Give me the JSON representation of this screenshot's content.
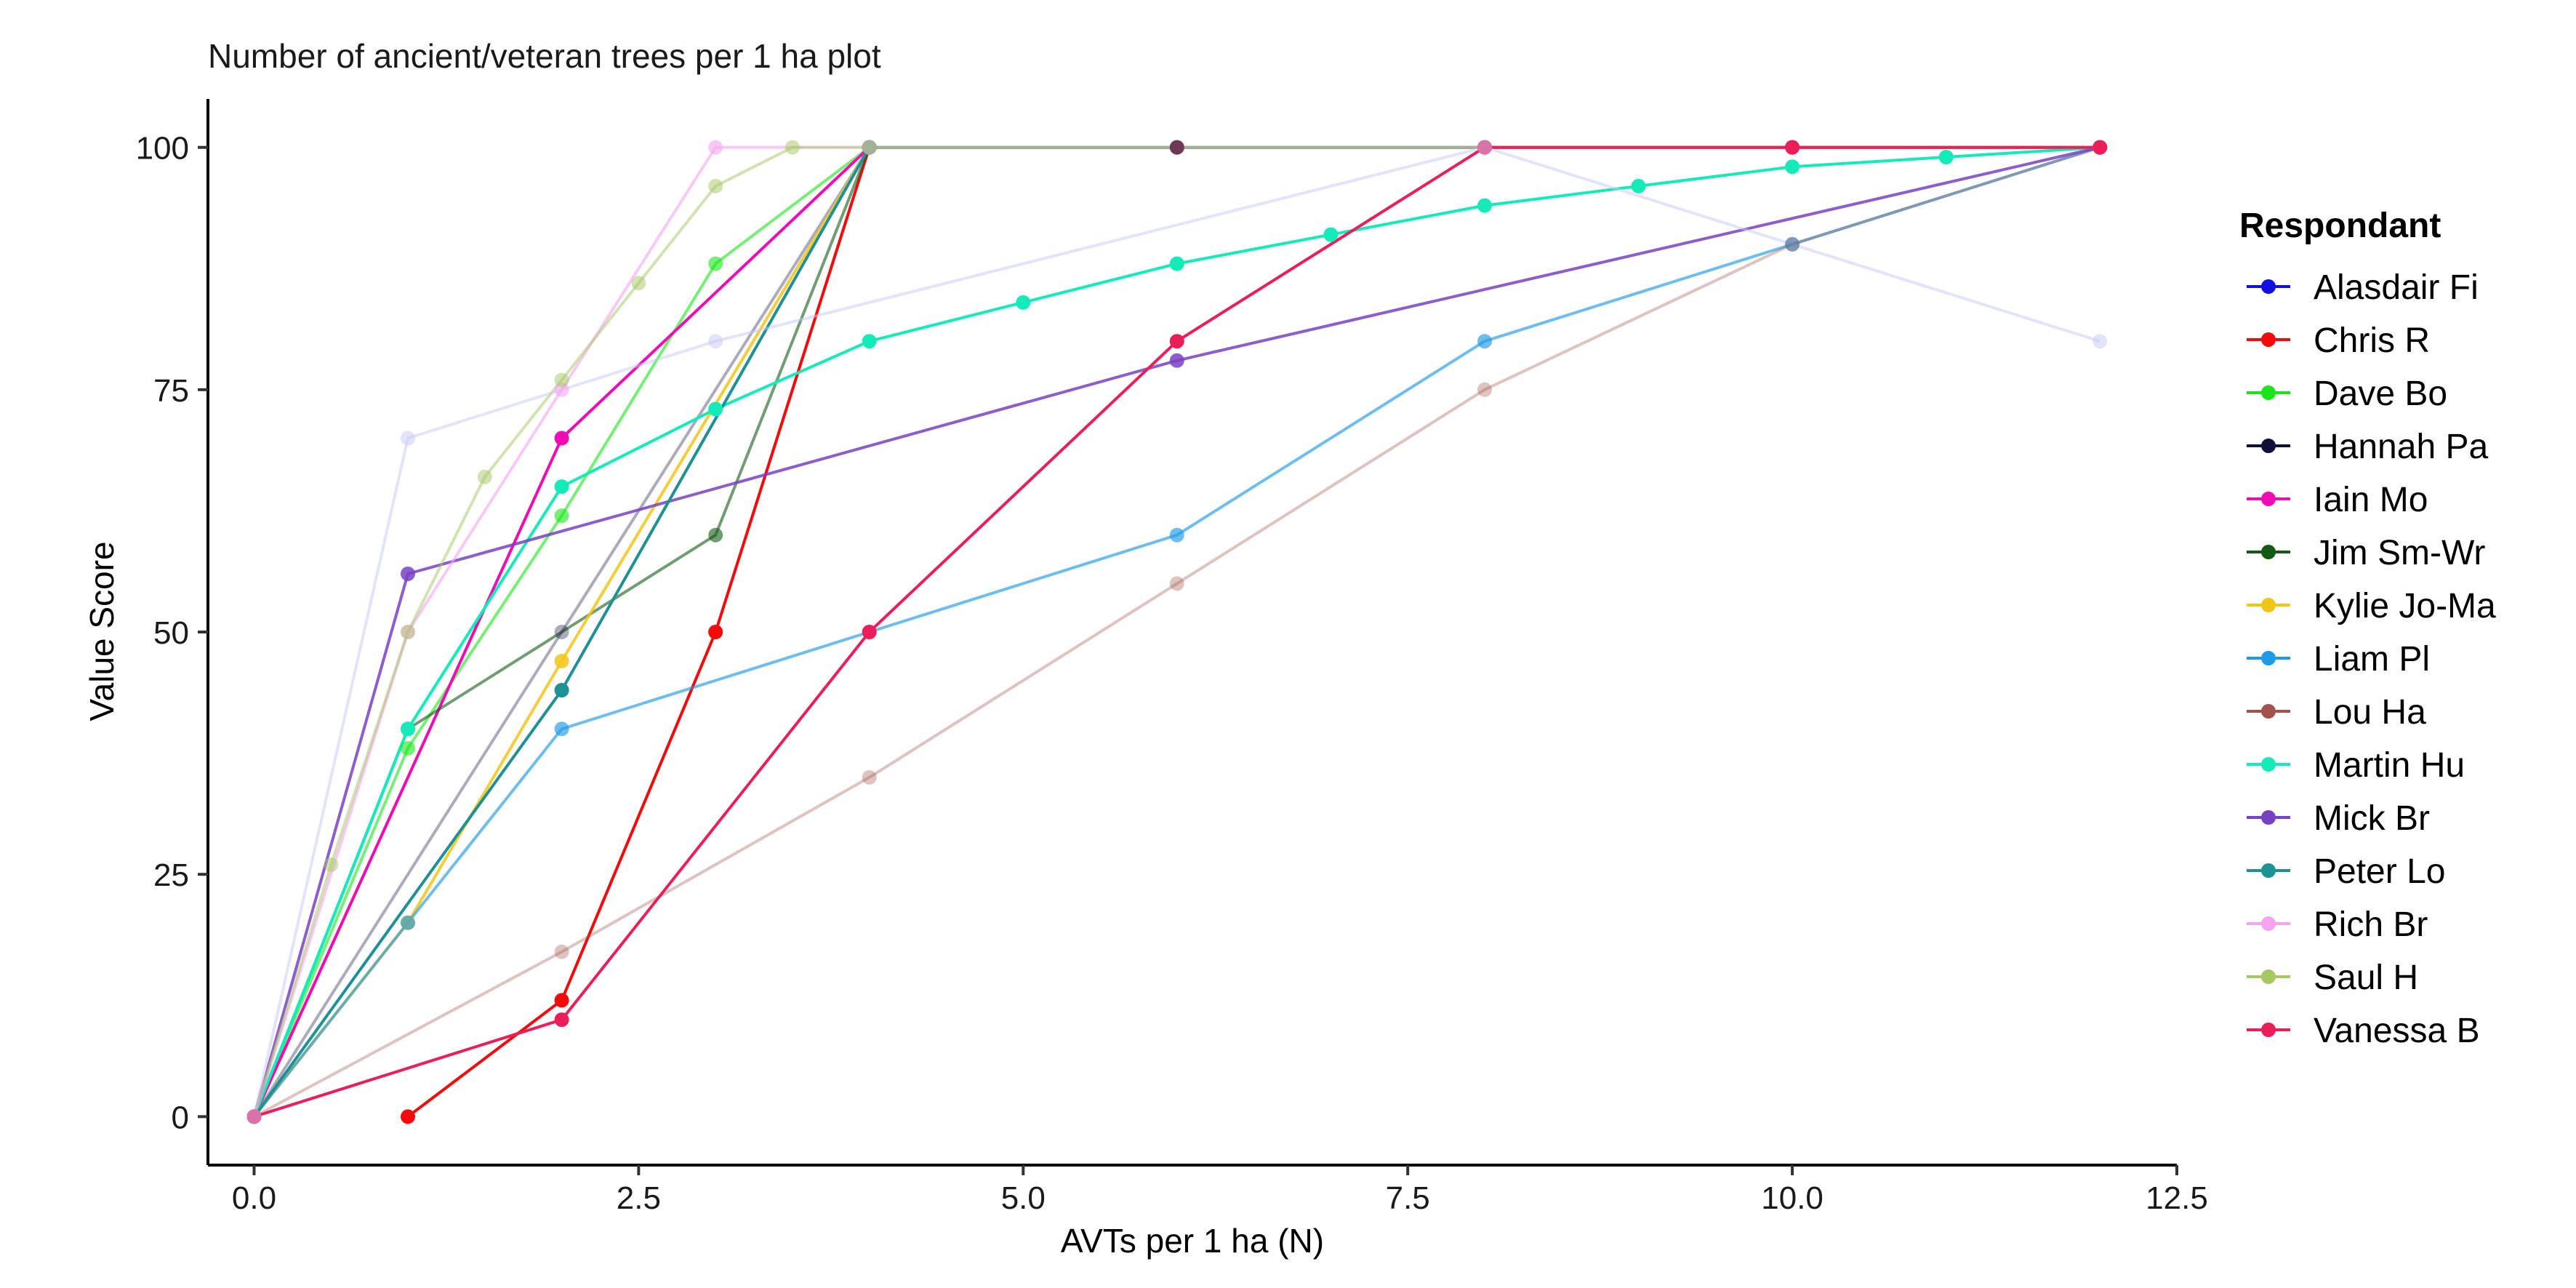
{
  "chart_data": {
    "type": "line",
    "title": "Number of ancient/veteran trees per 1 ha plot",
    "xlabel": "AVTs per 1 ha (N)",
    "ylabel": "Value Score",
    "xlim": [
      -0.3,
      12.5
    ],
    "ylim": [
      -5,
      105
    ],
    "x_ticks": [
      0,
      2.5,
      5,
      7.5,
      10,
      12.5
    ],
    "x_tick_labels": [
      "0.0",
      "2.5",
      "5.0",
      "7.5",
      "10.0",
      "12.5"
    ],
    "y_ticks": [
      0,
      25,
      50,
      75,
      100
    ],
    "y_tick_labels": [
      "0",
      "25",
      "50",
      "75",
      "100"
    ],
    "grid": false,
    "legend_title": "Respondant",
    "legend_position": "right",
    "series": [
      {
        "name": "Alasdair Fi",
        "color": "#1010e0",
        "opacity": 1.0,
        "x": [],
        "y": []
      },
      {
        "name": "Chris R",
        "color": "#f50a0a",
        "opacity": 1.0,
        "x": [
          1,
          2,
          3,
          4,
          12
        ],
        "y": [
          0,
          12,
          50,
          100,
          100
        ]
      },
      {
        "name": "Dave Bo",
        "color": "#19e619",
        "opacity": 0.6,
        "x": [
          0,
          1,
          2,
          3,
          4,
          12
        ],
        "y": [
          0,
          38,
          62,
          88,
          100,
          100
        ]
      },
      {
        "name": "Hannah Pa",
        "color": "#0f0f3c",
        "opacity": 0.35,
        "x": [
          0,
          2,
          4,
          12
        ],
        "y": [
          0,
          50,
          100,
          100
        ]
      },
      {
        "name": "Iain Mo",
        "color": "#f00cb4",
        "opacity": 1.0,
        "x": [
          0,
          2,
          4,
          6,
          8,
          10,
          12
        ],
        "y": [
          0,
          70,
          100,
          100,
          100,
          100,
          100
        ]
      },
      {
        "name": "Jim Sm-Wr",
        "color": "#145a14",
        "opacity": 0.6,
        "x": [
          0,
          1,
          3,
          4,
          6,
          8,
          10,
          12
        ],
        "y": [
          0,
          40,
          60,
          100,
          100,
          100,
          100,
          100
        ]
      },
      {
        "name": "Kylie Jo-Ma",
        "color": "#f2c618",
        "opacity": 0.85,
        "x": [
          0,
          1,
          2,
          4,
          12
        ],
        "y": [
          0,
          20,
          47,
          100,
          100
        ]
      },
      {
        "name": "Liam Pl",
        "color": "#1e9be6",
        "opacity": 0.65,
        "x": [
          0,
          1,
          2,
          4,
          6,
          8,
          10,
          12
        ],
        "y": [
          0,
          20,
          40,
          50,
          60,
          80,
          90,
          100
        ]
      },
      {
        "name": "Lou Ha",
        "color": "#a0524b",
        "opacity": 0.35,
        "x": [
          0,
          2,
          4,
          6,
          8,
          10,
          12
        ],
        "y": [
          0,
          17,
          35,
          55,
          75,
          90,
          100
        ]
      },
      {
        "name": "Martin Hu",
        "color": "#14ebb9",
        "opacity": 1.0,
        "x": [
          0,
          1,
          2,
          3,
          4,
          5,
          6,
          7,
          8,
          9,
          10,
          11,
          12
        ],
        "y": [
          0,
          40,
          65,
          73,
          80,
          84,
          88,
          91,
          94,
          96,
          98,
          99,
          100
        ]
      },
      {
        "name": "Mick Br",
        "color": "#7841c3",
        "opacity": 0.85,
        "x": [
          0,
          1,
          6,
          12
        ],
        "y": [
          0,
          56,
          78,
          100
        ]
      },
      {
        "name": "Peter Lo",
        "color": "#1e9196",
        "opacity": 1.0,
        "x": [
          0,
          2,
          4,
          12
        ],
        "y": [
          0,
          44,
          100,
          100
        ]
      },
      {
        "name": "Rich Br",
        "color": "#f5a5f0",
        "opacity": 0.6,
        "x": [
          0,
          1,
          2,
          3,
          4,
          12
        ],
        "y": [
          0,
          50,
          75,
          100,
          100,
          100
        ]
      },
      {
        "name": "Saul H",
        "color": "#a5c864",
        "opacity": 0.5,
        "x": [
          0,
          0.5,
          1,
          1.5,
          2,
          2.5,
          3,
          3.5,
          4,
          12
        ],
        "y": [
          0,
          26,
          50,
          66,
          76,
          86,
          96,
          100,
          100,
          100
        ]
      },
      {
        "name": "Vanessa B",
        "color": "#eb1e5a",
        "opacity": 1.0,
        "x": [
          0,
          2,
          4,
          6,
          8,
          10,
          12
        ],
        "y": [
          0,
          10,
          50,
          80,
          100,
          100,
          100
        ]
      },
      {
        "name": "",
        "color": "#c8c8f5",
        "opacity": 0.5,
        "x": [
          0,
          1,
          3,
          8,
          12
        ],
        "y": [
          0,
          70,
          80,
          100,
          80
        ]
      }
    ]
  }
}
